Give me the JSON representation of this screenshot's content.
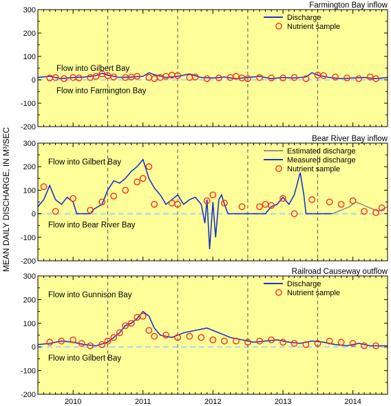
{
  "y_axis_label": "MEAN DAILY DISCHARGE, IN M³/SEC",
  "x_tick_labels": [
    "2010",
    "2011",
    "2012",
    "2013",
    "2014"
  ],
  "colors": {
    "plot_background": "#ffff99",
    "discharge": "#1a33cc",
    "estimated_discharge": "#909090",
    "nutrient_sample": "#ff2a1a",
    "year_divider": "#555555",
    "zero_reference": "#b7dbe6"
  },
  "chart_data": [
    {
      "type": "line",
      "title": "Farmington Bay inflow",
      "xlim": [
        "2009-07-01",
        "2014-07-01"
      ],
      "ylim": [
        -200,
        300
      ],
      "yticks": [
        -200,
        -100,
        0,
        100,
        200,
        300
      ],
      "annotations": [
        "Flow into Gilbert Bay",
        "Flow into Farmington Bay"
      ],
      "legend": {
        "placement": "top-right",
        "entries": [
          "Discharge",
          "Nutrient sample"
        ]
      },
      "series": [
        {
          "name": "Discharge",
          "kind": "line",
          "x": [
            "2009-07-01",
            "2009-09-01",
            "2009-11-01",
            "2010-01-01",
            "2010-03-01",
            "2010-05-01",
            "2010-06-01",
            "2010-07-01",
            "2010-09-01",
            "2010-11-01",
            "2011-01-01",
            "2011-02-01",
            "2011-03-01",
            "2011-05-01",
            "2011-07-01",
            "2011-09-01",
            "2011-11-01",
            "2012-01-01",
            "2012-03-01",
            "2012-05-01",
            "2012-07-01",
            "2012-09-01",
            "2012-11-01",
            "2013-01-01",
            "2013-03-01",
            "2013-05-01",
            "2013-06-01",
            "2013-07-01",
            "2013-09-01",
            "2013-11-01",
            "2014-01-01",
            "2014-03-01",
            "2014-05-01",
            "2014-07-01"
          ],
          "y": [
            10,
            15,
            5,
            10,
            12,
            18,
            28,
            20,
            10,
            12,
            15,
            30,
            22,
            10,
            15,
            25,
            10,
            8,
            12,
            5,
            10,
            15,
            5,
            10,
            8,
            12,
            30,
            20,
            10,
            5,
            8,
            10,
            5,
            10
          ]
        },
        {
          "name": "Nutrient sample",
          "kind": "scatter",
          "x": [
            "2009-09-01",
            "2009-10-01",
            "2009-11-15",
            "2010-01-01",
            "2010-02-01",
            "2010-04-01",
            "2010-05-01",
            "2010-06-01",
            "2010-07-01",
            "2010-08-01",
            "2010-10-01",
            "2010-11-01",
            "2010-12-01",
            "2011-02-01",
            "2011-03-01",
            "2011-04-01",
            "2011-05-01",
            "2011-06-01",
            "2011-07-01",
            "2011-09-01",
            "2011-10-01",
            "2011-12-01",
            "2012-02-01",
            "2012-04-01",
            "2012-05-01",
            "2012-06-01",
            "2012-07-01",
            "2012-09-01",
            "2012-11-01",
            "2013-01-01",
            "2013-03-01",
            "2013-05-01",
            "2013-07-01",
            "2013-08-01",
            "2013-10-01",
            "2013-12-01",
            "2014-02-01",
            "2014-04-01",
            "2014-05-01"
          ],
          "y": [
            8,
            10,
            5,
            10,
            8,
            10,
            15,
            25,
            18,
            12,
            10,
            12,
            15,
            10,
            5,
            10,
            15,
            20,
            18,
            10,
            12,
            5,
            8,
            10,
            15,
            8,
            5,
            10,
            8,
            8,
            10,
            5,
            20,
            18,
            12,
            8,
            5,
            12,
            5
          ]
        }
      ]
    },
    {
      "type": "line",
      "title": "Bear River Bay inflow",
      "xlim": [
        "2009-07-01",
        "2014-07-01"
      ],
      "ylim": [
        -200,
        300
      ],
      "yticks": [
        -200,
        -100,
        0,
        100,
        200,
        300
      ],
      "annotations": [
        "Flow into Gilbert Bay",
        "Flow into Bear River Bay"
      ],
      "legend": {
        "placement": "top-right",
        "entries": [
          "Estimated discharge",
          "Measured discharge",
          "Nutrient sample"
        ]
      },
      "series": [
        {
          "name": "Measured discharge",
          "kind": "line",
          "x": [
            "2009-07-01",
            "2009-08-01",
            "2009-09-01",
            "2009-10-01",
            "2009-11-01",
            "2009-12-01",
            "2010-01-01",
            "2010-01-20",
            "2010-04-01",
            "2010-04-20",
            "2010-06-01",
            "2010-07-01",
            "2010-08-01",
            "2010-09-01",
            "2010-10-01",
            "2010-11-01",
            "2010-12-01",
            "2011-01-01",
            "2011-02-01",
            "2011-03-01",
            "2011-04-01",
            "2011-05-01",
            "2011-06-01",
            "2011-07-01",
            "2011-08-01",
            "2011-09-01",
            "2011-10-01",
            "2011-11-01",
            "2011-11-20",
            "2011-12-01",
            "2011-12-15",
            "2012-01-01",
            "2012-01-15",
            "2012-02-01",
            "2012-02-15",
            "2012-03-01",
            "2012-03-20",
            "2012-10-01",
            "2012-11-01",
            "2012-12-01",
            "2013-01-01",
            "2013-02-01",
            "2013-03-01",
            "2013-04-01",
            "2013-04-20",
            "2013-05-01",
            "2013-06-01",
            "2013-07-01",
            "2013-09-15"
          ],
          "y": [
            30,
            60,
            120,
            60,
            40,
            70,
            50,
            0,
            0,
            20,
            40,
            100,
            140,
            130,
            150,
            180,
            200,
            230,
            150,
            110,
            80,
            40,
            60,
            80,
            40,
            60,
            70,
            40,
            -40,
            60,
            -150,
            50,
            -100,
            60,
            80,
            40,
            0,
            0,
            30,
            40,
            70,
            40,
            80,
            175,
            80,
            0,
            0,
            0,
            0
          ]
        },
        {
          "name": "Estimated discharge",
          "kind": "line",
          "x": [
            "2013-09-15",
            "2013-10-15",
            "2013-11-15",
            "2013-12-15",
            "2014-01-15",
            "2014-02-15",
            "2014-03-15",
            "2014-04-15",
            "2014-05-15",
            "2014-07-01"
          ],
          "y": [
            0,
            10,
            20,
            30,
            50,
            40,
            30,
            20,
            10,
            30
          ]
        },
        {
          "name": "Nutrient sample",
          "kind": "scatter",
          "x": [
            "2009-08-01",
            "2009-10-01",
            "2010-01-01",
            "2010-04-01",
            "2010-06-01",
            "2010-08-01",
            "2010-10-01",
            "2010-12-01",
            "2011-01-01",
            "2011-02-01",
            "2011-03-01",
            "2011-06-01",
            "2011-07-01",
            "2011-12-01",
            "2012-01-01",
            "2012-03-01",
            "2012-06-01",
            "2012-09-01",
            "2012-10-01",
            "2012-11-01",
            "2013-01-01",
            "2013-03-01",
            "2013-06-01",
            "2013-09-01",
            "2013-11-01",
            "2014-01-01",
            "2014-03-01",
            "2014-05-01",
            "2014-06-01"
          ],
          "y": [
            115,
            10,
            65,
            15,
            50,
            75,
            100,
            135,
            150,
            200,
            40,
            45,
            40,
            55,
            80,
            45,
            30,
            30,
            40,
            35,
            65,
            0,
            60,
            50,
            40,
            55,
            10,
            5,
            25
          ]
        }
      ]
    },
    {
      "type": "line",
      "title": "Railroad Causeway outflow",
      "xlim": [
        "2009-07-01",
        "2014-07-01"
      ],
      "ylim": [
        -200,
        300
      ],
      "yticks": [
        -200,
        -100,
        0,
        100,
        200,
        300
      ],
      "annotations": [
        "Flow into Gunnison Bay",
        "Flow into Gilbert Bay"
      ],
      "legend": {
        "placement": "top-right",
        "entries": [
          "Discharge",
          "Nutrient sample"
        ]
      },
      "series": [
        {
          "name": "Discharge",
          "kind": "line",
          "x": [
            "2009-07-01",
            "2009-09-01",
            "2009-11-01",
            "2010-01-01",
            "2010-03-01",
            "2010-05-01",
            "2010-07-01",
            "2010-09-01",
            "2010-10-01",
            "2010-11-01",
            "2010-12-01",
            "2011-01-01",
            "2011-02-01",
            "2011-03-01",
            "2011-04-01",
            "2011-06-01",
            "2011-08-01",
            "2011-10-01",
            "2011-12-01",
            "2012-02-01",
            "2012-04-01",
            "2012-06-01",
            "2012-08-01",
            "2012-10-01",
            "2012-12-01",
            "2013-02-01",
            "2013-04-01",
            "2013-06-01",
            "2013-08-01",
            "2013-10-01",
            "2013-12-01",
            "2014-02-01",
            "2014-04-01",
            "2014-07-01"
          ],
          "y": [
            10,
            15,
            25,
            20,
            10,
            5,
            20,
            60,
            90,
            100,
            120,
            150,
            130,
            80,
            50,
            40,
            60,
            70,
            80,
            60,
            40,
            30,
            20,
            25,
            30,
            20,
            15,
            25,
            20,
            10,
            5,
            15,
            5,
            5
          ]
        },
        {
          "name": "Nutrient sample",
          "kind": "scatter",
          "x": [
            "2009-09-01",
            "2009-11-01",
            "2010-01-01",
            "2010-02-15",
            "2010-04-01",
            "2010-06-01",
            "2010-07-01",
            "2010-08-01",
            "2010-09-01",
            "2010-10-01",
            "2010-11-01",
            "2010-12-01",
            "2011-01-01",
            "2011-02-01",
            "2011-03-01",
            "2011-05-01",
            "2011-07-01",
            "2011-09-01",
            "2011-11-01",
            "2012-01-01",
            "2012-03-01",
            "2012-05-01",
            "2012-07-01",
            "2012-09-01",
            "2012-11-01",
            "2013-01-01",
            "2013-03-01",
            "2013-05-01",
            "2013-07-01",
            "2013-09-01",
            "2013-11-01",
            "2014-01-01",
            "2014-03-01",
            "2014-05-01"
          ],
          "y": [
            20,
            25,
            30,
            15,
            5,
            10,
            25,
            40,
            60,
            90,
            100,
            125,
            130,
            70,
            45,
            50,
            40,
            45,
            40,
            30,
            25,
            25,
            20,
            25,
            30,
            20,
            15,
            10,
            15,
            25,
            20,
            15,
            5,
            5
          ]
        }
      ]
    }
  ]
}
